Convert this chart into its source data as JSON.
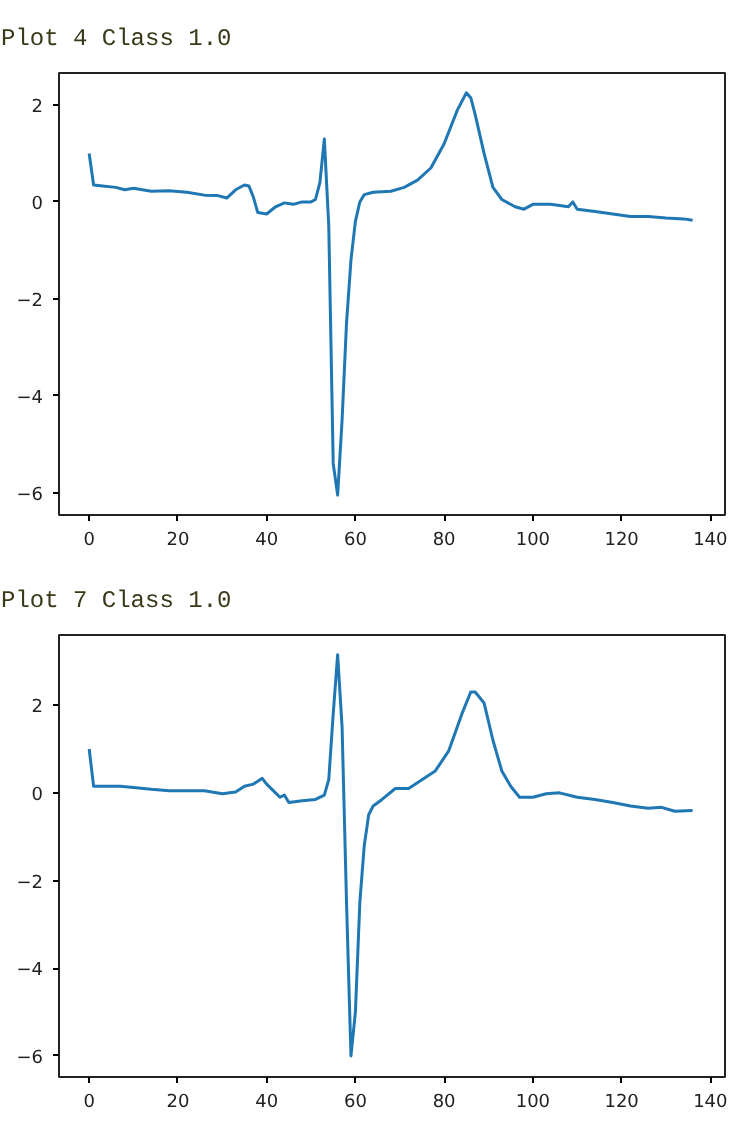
{
  "chart_data": [
    {
      "type": "line",
      "title": "Plot  4  Class  1.0",
      "xlim": [
        -6.8,
        143.3
      ],
      "ylim": [
        -6.46,
        2.66
      ],
      "xticks": [
        0,
        20,
        40,
        60,
        80,
        100,
        120,
        140
      ],
      "yticks": [
        -6,
        -4,
        -2,
        0,
        2
      ],
      "grid": false,
      "x": [
        0,
        1,
        3,
        6,
        8,
        10,
        14,
        18,
        22,
        26,
        29,
        31,
        33,
        35,
        36,
        37,
        38,
        40,
        42,
        44,
        46,
        48,
        50,
        51,
        52,
        53,
        54,
        55,
        56,
        57,
        58,
        59,
        60,
        61,
        62,
        64,
        68,
        71,
        74,
        77,
        80,
        83,
        85,
        86,
        87,
        89,
        91,
        93,
        96,
        98,
        100,
        104,
        108,
        109,
        110,
        114,
        118,
        122,
        126,
        130,
        134,
        136
      ],
      "series": [
        {
          "color": "#1f77b4",
          "values": [
            1.0,
            0.35,
            0.33,
            0.3,
            0.25,
            0.28,
            0.22,
            0.23,
            0.2,
            0.14,
            0.13,
            0.08,
            0.25,
            0.35,
            0.33,
            0.1,
            -0.22,
            -0.25,
            -0.1,
            -0.02,
            -0.05,
            0.0,
            0.0,
            0.05,
            0.4,
            1.3,
            -0.5,
            -5.4,
            -6.05,
            -4.5,
            -2.5,
            -1.2,
            -0.4,
            0.0,
            0.15,
            0.2,
            0.22,
            0.3,
            0.45,
            0.7,
            1.2,
            1.9,
            2.25,
            2.15,
            1.8,
            1.0,
            0.3,
            0.05,
            -0.1,
            -0.15,
            -0.05,
            -0.05,
            -0.1,
            0.0,
            -0.15,
            -0.2,
            -0.25,
            -0.3,
            -0.3,
            -0.33,
            -0.35,
            -0.38
          ]
        }
      ]
    },
    {
      "type": "line",
      "title": "Plot  7  Class  1.0",
      "xlim": [
        -6.8,
        143.3
      ],
      "ylim": [
        -6.48,
        3.6
      ],
      "xticks": [
        0,
        20,
        40,
        60,
        80,
        100,
        120,
        140
      ],
      "yticks": [
        -6,
        -4,
        -2,
        0,
        2
      ],
      "grid": false,
      "x": [
        0,
        1,
        4,
        7,
        10,
        14,
        18,
        22,
        26,
        30,
        33,
        35,
        37,
        39,
        40,
        42,
        43,
        44,
        45,
        48,
        51,
        53,
        54,
        55,
        56,
        57,
        58,
        59,
        60,
        61,
        62,
        63,
        64,
        66,
        69,
        72,
        75,
        78,
        81,
        84,
        86,
        87,
        89,
        91,
        93,
        95,
        97,
        100,
        103,
        106,
        110,
        114,
        118,
        122,
        126,
        129,
        132,
        136
      ],
      "series": [
        {
          "color": "#1f77b4",
          "values": [
            1.0,
            0.15,
            0.15,
            0.15,
            0.12,
            0.08,
            0.05,
            0.05,
            0.05,
            -0.02,
            0.02,
            0.15,
            0.2,
            0.33,
            0.2,
            0.0,
            -0.1,
            -0.05,
            -0.22,
            -0.18,
            -0.15,
            -0.05,
            0.3,
            1.8,
            3.15,
            1.5,
            -2.5,
            -6.0,
            -5.0,
            -2.5,
            -1.2,
            -0.5,
            -0.3,
            -0.15,
            0.1,
            0.1,
            0.3,
            0.5,
            0.95,
            1.8,
            2.3,
            2.3,
            2.05,
            1.2,
            0.5,
            0.15,
            -0.1,
            -0.1,
            -0.02,
            0.0,
            -0.1,
            -0.15,
            -0.22,
            -0.3,
            -0.35,
            -0.33,
            -0.42,
            -0.4
          ]
        }
      ]
    }
  ]
}
